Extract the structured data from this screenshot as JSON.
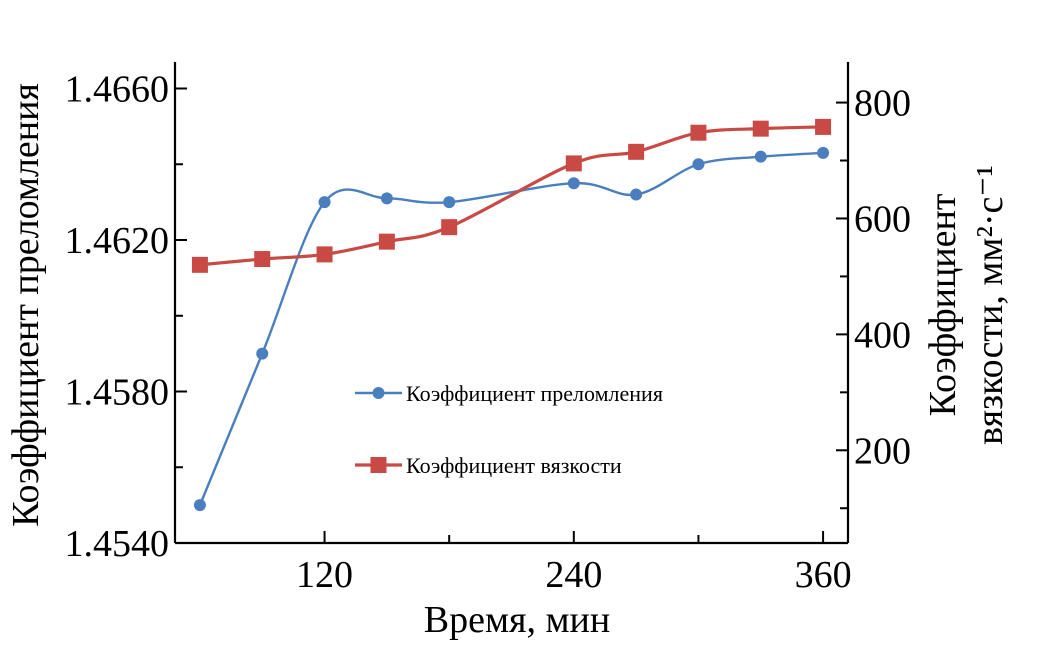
{
  "chart_data": {
    "type": "line",
    "xlabel": "Время, мин",
    "ylabel_left": "Коэффициент преломления",
    "ylabel_right_line1": "Коэффициент",
    "ylabel_right_line2": "вязкости, мм²·с⁻¹",
    "xlim": [
      48,
      372
    ],
    "ylim_left": [
      1.454,
      1.4667
    ],
    "ylim_right": [
      40,
      870
    ],
    "x_ticks": [
      120,
      240,
      360
    ],
    "x_tick_labels": [
      "120",
      "240",
      "360"
    ],
    "y_left_ticks": [
      1.454,
      1.458,
      1.462,
      1.466
    ],
    "y_left_tick_labels": [
      "1.4540",
      "1.4580",
      "1.4620",
      "1.4660"
    ],
    "y_right_ticks": [
      200,
      400,
      600,
      800
    ],
    "y_right_tick_labels": [
      "200",
      "400",
      "600",
      "800"
    ],
    "legend_placement": "center",
    "series": [
      {
        "name": "Коэффициент преломления",
        "axis": "left",
        "color": "#4a7fbf",
        "marker": "circle",
        "x": [
          60,
          90,
          120,
          150,
          180,
          240,
          270,
          300,
          330,
          360
        ],
        "values": [
          1.455,
          1.459,
          1.463,
          1.4631,
          1.463,
          1.4635,
          1.4632,
          1.464,
          1.4642,
          1.4643
        ]
      },
      {
        "name": "Коэффициент вязкости",
        "axis": "right",
        "color": "#c94a45",
        "marker": "square",
        "x": [
          60,
          90,
          120,
          150,
          180,
          240,
          270,
          300,
          330,
          360
        ],
        "values": [
          520,
          530,
          538,
          560,
          585,
          695,
          715,
          748,
          755,
          758
        ]
      }
    ]
  }
}
